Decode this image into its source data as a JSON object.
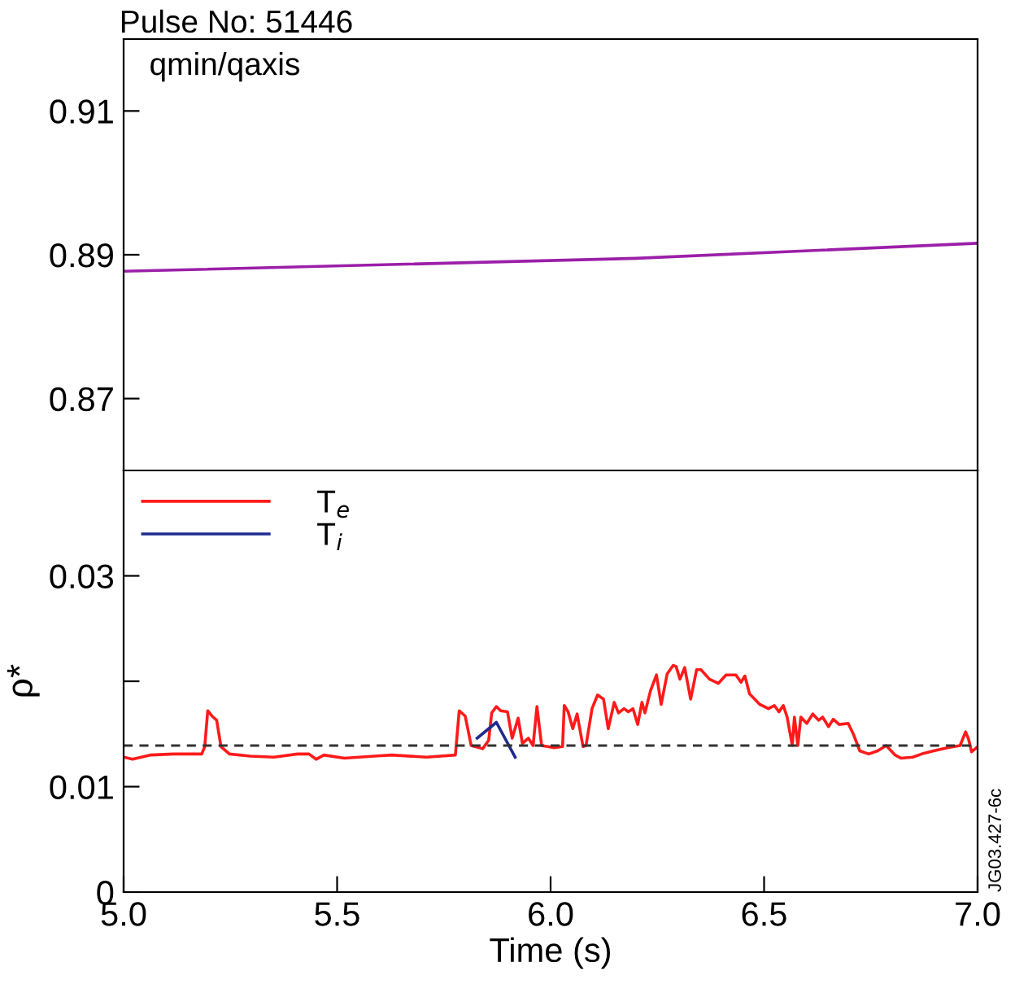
{
  "chart_data": [
    {
      "type": "line",
      "title": "Pulse No: 51446",
      "annotations": [
        "qmin/qaxis"
      ],
      "x": [
        5.0,
        6.2,
        7.0
      ],
      "series": [
        {
          "color": "#9b1fa8",
          "values": [
            0.8877,
            0.8895,
            0.8916
          ]
        }
      ],
      "xlim": [
        5.0,
        7.0
      ],
      "ylim": [
        0.86,
        0.92
      ],
      "yticks": [
        0.87,
        0.89,
        0.91
      ],
      "tick_labels": "y",
      "grid": false,
      "legend": false
    },
    {
      "type": "line",
      "xlabel": "Time (s)",
      "ylabel": "ρ*",
      "annotations": [
        "JG03.427-6c"
      ],
      "series": [
        {
          "name": "T$_{e}$",
          "color": "#ff1a1a",
          "x": [
            5.0,
            5.021,
            5.062,
            5.117,
            5.183,
            5.19,
            5.197,
            5.207,
            5.218,
            5.228,
            5.248,
            5.297,
            5.352,
            5.407,
            5.434,
            5.451,
            5.469,
            5.517,
            5.586,
            5.628,
            5.71,
            5.777,
            5.786,
            5.8,
            5.814,
            5.841,
            5.855,
            5.862,
            5.873,
            5.883,
            5.899,
            5.91,
            5.924,
            5.934,
            5.948,
            5.959,
            5.968,
            5.979,
            6.007,
            6.028,
            6.032,
            6.041,
            6.052,
            6.062,
            6.076,
            6.083,
            6.097,
            6.11,
            6.124,
            6.135,
            6.149,
            6.159,
            6.172,
            6.182,
            6.193,
            6.204,
            6.214,
            6.221,
            6.234,
            6.248,
            6.259,
            6.273,
            6.287,
            6.294,
            6.303,
            6.314,
            6.328,
            6.342,
            6.352,
            6.372,
            6.393,
            6.411,
            6.434,
            6.446,
            6.455,
            6.466,
            6.49,
            6.51,
            6.524,
            6.535,
            6.545,
            6.554,
            6.566,
            6.571,
            6.579,
            6.586,
            6.6,
            6.614,
            6.628,
            6.637,
            6.651,
            6.662,
            6.676,
            6.697,
            6.71,
            6.724,
            6.745,
            6.766,
            6.786,
            6.807,
            6.821,
            6.848,
            6.869,
            6.897,
            6.931,
            6.959,
            6.972,
            6.979,
            6.986,
            7.0
          ],
          "values": [
            0.0128,
            0.0126,
            0.013,
            0.0131,
            0.0131,
            0.0138,
            0.0172,
            0.0167,
            0.0163,
            0.0138,
            0.0131,
            0.0129,
            0.0128,
            0.0131,
            0.0131,
            0.0126,
            0.013,
            0.0127,
            0.0129,
            0.013,
            0.0128,
            0.013,
            0.0172,
            0.0167,
            0.0139,
            0.0136,
            0.0144,
            0.017,
            0.0176,
            0.0172,
            0.0171,
            0.0146,
            0.0165,
            0.0141,
            0.0146,
            0.0139,
            0.0176,
            0.0139,
            0.0137,
            0.0138,
            0.0177,
            0.0171,
            0.0155,
            0.0169,
            0.0138,
            0.0139,
            0.0174,
            0.0187,
            0.0183,
            0.0155,
            0.018,
            0.017,
            0.0174,
            0.0171,
            0.0174,
            0.0159,
            0.018,
            0.017,
            0.0191,
            0.0206,
            0.0178,
            0.0207,
            0.0215,
            0.0214,
            0.0202,
            0.0213,
            0.0183,
            0.0211,
            0.0211,
            0.0202,
            0.0198,
            0.0206,
            0.0206,
            0.0199,
            0.0205,
            0.0188,
            0.0178,
            0.0174,
            0.0177,
            0.0171,
            0.0177,
            0.0166,
            0.0139,
            0.0166,
            0.0139,
            0.0166,
            0.016,
            0.0169,
            0.0163,
            0.0166,
            0.0157,
            0.0164,
            0.0159,
            0.016,
            0.0149,
            0.0134,
            0.0131,
            0.0134,
            0.0139,
            0.013,
            0.0127,
            0.0128,
            0.0131,
            0.0134,
            0.0137,
            0.0139,
            0.0152,
            0.0145,
            0.0133,
            0.0138
          ]
        },
        {
          "name": "T$_{i}$",
          "color": "#1f2a8f",
          "x": [
            5.828,
            5.873,
            5.917
          ],
          "values": [
            0.0146,
            0.0161,
            0.0128
          ]
        }
      ],
      "ref_lines": [
        {
          "axis": "y",
          "value": 0.0139,
          "color": "#333333",
          "line_style": "dashed"
        }
      ],
      "xlim": [
        5.0,
        7.0
      ],
      "xticks": [
        {
          "value": 5.0,
          "label": "5.0"
        },
        {
          "value": 5.5,
          "label": "5.5"
        },
        {
          "value": 6.0,
          "label": "6.0"
        },
        {
          "value": 6.5,
          "label": "6.5"
        },
        {
          "value": 7.0,
          "label": "7.0"
        }
      ],
      "ylim": [
        0,
        0.04
      ],
      "yticks": [
        0,
        {
          "value": 0.01,
          "label": "0.01"
        },
        {
          "value": 0.02,
          "label": null
        },
        {
          "value": 0.03,
          "label": "0.03"
        }
      ],
      "grid": false,
      "legend": "top left"
    }
  ]
}
